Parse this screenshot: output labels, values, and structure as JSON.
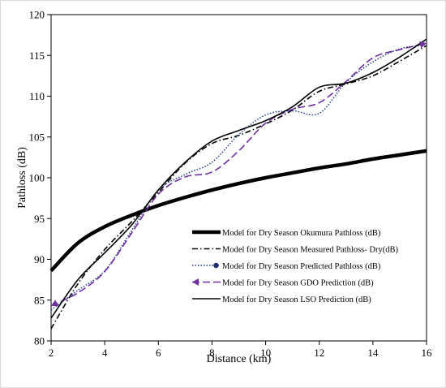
{
  "chart_data": {
    "type": "line",
    "xlabel": "Distance (km)",
    "ylabel": "Pathloss (dB)",
    "xlim": [
      2,
      16
    ],
    "ylim": [
      80,
      120
    ],
    "x_ticks": [
      "2",
      "4",
      "6",
      "8",
      "10",
      "12",
      "14",
      "16"
    ],
    "y_ticks": [
      "80",
      "85",
      "90",
      "95",
      "100",
      "105",
      "110",
      "115",
      "120"
    ],
    "grid": false,
    "legend_position": "lower-right",
    "series": [
      {
        "name": "Model for Dry Season Okumura Pathloss (dB)",
        "color": "#000000",
        "style": "thick-solid",
        "points": [
          [
            2,
            88.6
          ],
          [
            3,
            92.0
          ],
          [
            4,
            94.0
          ],
          [
            5,
            95.4
          ],
          [
            6,
            96.6
          ],
          [
            7,
            97.6
          ],
          [
            8,
            98.5
          ],
          [
            9,
            99.3
          ],
          [
            10,
            100.0
          ],
          [
            11,
            100.6
          ],
          [
            12,
            101.2
          ],
          [
            13,
            101.7
          ],
          [
            14,
            102.3
          ],
          [
            15,
            102.8
          ],
          [
            16,
            103.3
          ]
        ]
      },
      {
        "name": "Model for Dry Season Measured Pathloss- Dry(dB)",
        "color": "#000000",
        "style": "dash-dot",
        "points": [
          [
            2,
            81.5
          ],
          [
            3,
            87.0
          ],
          [
            4,
            91.2
          ],
          [
            5,
            94.6
          ],
          [
            6,
            98.2
          ],
          [
            7,
            101.8
          ],
          [
            8,
            104.2
          ],
          [
            9,
            105.2
          ],
          [
            10,
            106.6
          ],
          [
            11,
            108.3
          ],
          [
            12,
            110.6
          ],
          [
            13,
            111.5
          ],
          [
            14,
            112.5
          ],
          [
            15,
            114.3
          ],
          [
            16,
            116.2
          ]
        ]
      },
      {
        "name": "Model for Dry Season Predicted Pathloss (dB)",
        "color": "#1f3a8a",
        "style": "dotted",
        "points": [
          [
            2,
            83.8
          ],
          [
            3,
            86.2
          ],
          [
            4,
            88.6
          ],
          [
            5,
            93.5
          ],
          [
            6,
            98.5
          ],
          [
            7,
            100.4
          ],
          [
            8,
            101.9
          ],
          [
            9,
            105.3
          ],
          [
            10,
            107.7
          ],
          [
            11,
            108.2
          ],
          [
            12,
            107.9
          ],
          [
            13,
            111.7
          ],
          [
            14,
            114.2
          ],
          [
            15,
            115.8
          ],
          [
            16,
            116.3
          ]
        ]
      },
      {
        "name": "Model for Dry Season GDO Prediction (dB)",
        "color": "#7030a0",
        "style": "dashed",
        "points": [
          [
            2,
            84.3
          ],
          [
            3,
            85.9
          ],
          [
            4,
            88.5
          ],
          [
            5,
            93.2
          ],
          [
            6,
            98.0
          ],
          [
            7,
            100.1
          ],
          [
            8,
            100.7
          ],
          [
            9,
            103.3
          ],
          [
            10,
            106.7
          ],
          [
            11,
            108.4
          ],
          [
            12,
            109.2
          ],
          [
            13,
            111.8
          ],
          [
            14,
            114.7
          ],
          [
            15,
            115.7
          ],
          [
            16,
            116.5
          ]
        ]
      },
      {
        "name": "Model for Dry Season LSO Prediction (dB)",
        "color": "#000000",
        "style": "solid",
        "points": [
          [
            2,
            82.8
          ],
          [
            3,
            87.5
          ],
          [
            4,
            90.8
          ],
          [
            5,
            94.2
          ],
          [
            6,
            98.5
          ],
          [
            7,
            101.9
          ],
          [
            8,
            104.5
          ],
          [
            9,
            105.8
          ],
          [
            10,
            107.0
          ],
          [
            11,
            108.7
          ],
          [
            12,
            111.1
          ],
          [
            13,
            111.6
          ],
          [
            14,
            112.9
          ],
          [
            15,
            114.8
          ],
          [
            16,
            117.0
          ]
        ]
      }
    ]
  }
}
